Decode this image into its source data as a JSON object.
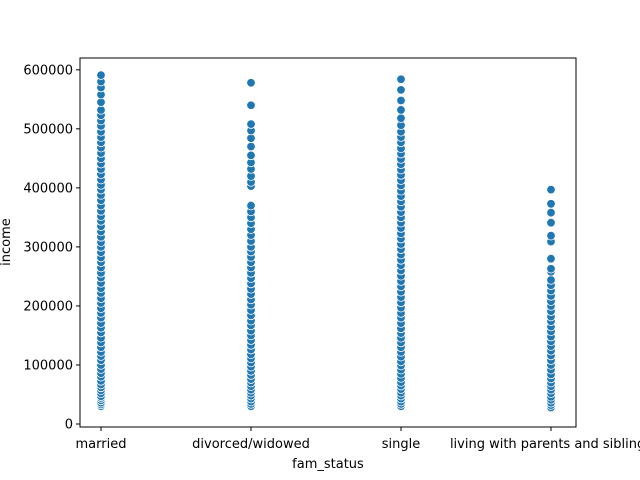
{
  "chart_data": {
    "type": "scatter",
    "title": "",
    "xlabel": "fam_status",
    "ylabel": "income",
    "grid": false,
    "legend": "none",
    "marker_color": "#1f77b4",
    "marker_edge_color": "#ffffff",
    "categories": [
      "married",
      "divorced/widowed",
      "single",
      "living with parents and siblings"
    ],
    "ylim": [
      0,
      620000
    ],
    "yticks": [
      0,
      100000,
      200000,
      300000,
      400000,
      500000,
      600000
    ],
    "ytick_labels": [
      "0",
      "100000",
      "200000",
      "300000",
      "400000",
      "500000",
      "600000"
    ],
    "series": [
      {
        "category": "married",
        "values": [
          30000,
          33000,
          36000,
          40000,
          44000,
          47000,
          52000,
          57000,
          62000,
          67000,
          73000,
          80000,
          86000,
          93000,
          100000,
          108000,
          115000,
          122000,
          130000,
          138000,
          146000,
          155000,
          163000,
          171000,
          180000,
          188000,
          196000,
          205000,
          213000,
          222000,
          230000,
          239000,
          248000,
          256000,
          265000,
          274000,
          282000,
          291000,
          300000,
          308000,
          317000,
          326000,
          335000,
          344000,
          352000,
          361000,
          370000,
          379000,
          388000,
          397000,
          405000,
          414000,
          423000,
          432000,
          441000,
          450000,
          459000,
          468000,
          477000,
          486000,
          495000,
          505000,
          514000,
          523000,
          532000,
          545000,
          558000,
          570000,
          580000,
          591000
        ]
      },
      {
        "category": "divorced/widowed",
        "values": [
          30000,
          34000,
          38000,
          43000,
          48000,
          53000,
          58000,
          64000,
          70000,
          76000,
          83000,
          90000,
          97000,
          104000,
          111000,
          118000,
          126000,
          134000,
          142000,
          150000,
          158000,
          167000,
          175000,
          184000,
          193000,
          202000,
          211000,
          220000,
          229000,
          238000,
          247000,
          256000,
          265000,
          274000,
          283000,
          292000,
          300000,
          310000,
          320000,
          330000,
          340000,
          350000,
          360000,
          370000,
          403000,
          410000,
          420000,
          432000,
          443000,
          455000,
          470000,
          484000,
          497000,
          508000,
          540000,
          578000
        ]
      },
      {
        "category": "single",
        "values": [
          30000,
          34000,
          38000,
          43000,
          48000,
          53000,
          59000,
          65000,
          71000,
          78000,
          85000,
          92000,
          99000,
          106000,
          114000,
          122000,
          130000,
          138000,
          146000,
          154000,
          162000,
          171000,
          180000,
          188000,
          197000,
          206000,
          215000,
          224000,
          233000,
          242000,
          251000,
          260000,
          269000,
          278000,
          287000,
          296000,
          305000,
          314000,
          323000,
          332000,
          341000,
          350000,
          359000,
          368000,
          377000,
          386000,
          395000,
          404000,
          413000,
          422000,
          431000,
          440000,
          449000,
          458000,
          467000,
          477000,
          486000,
          495000,
          506000,
          518000,
          532000,
          548000,
          566000,
          584000
        ]
      },
      {
        "category": "living with parents and siblings",
        "values": [
          28000,
          32000,
          36000,
          41000,
          46000,
          52000,
          58000,
          64000,
          70000,
          77000,
          84000,
          92000,
          100000,
          108000,
          116000,
          124000,
          132000,
          140000,
          148000,
          157000,
          165000,
          174000,
          182000,
          191000,
          200000,
          208000,
          217000,
          226000,
          235000,
          244000,
          258000,
          263000,
          280000,
          309000,
          319000,
          341000,
          358000,
          373000,
          397000
        ]
      }
    ]
  }
}
